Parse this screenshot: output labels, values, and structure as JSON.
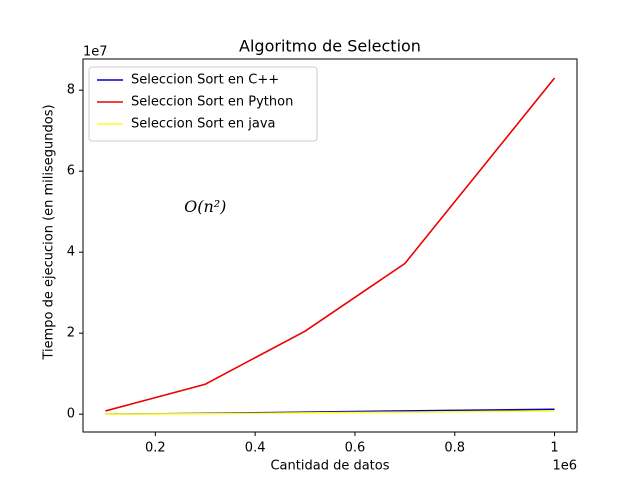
{
  "chart_data": {
    "type": "line",
    "title": "Algoritmo de  Selection",
    "xlabel": "Cantidad de datos",
    "ylabel": "Tiempo de ejecucion (en milisegundos)",
    "x_offset_text": "1e6",
    "y_offset_text": "1e7",
    "x": [
      0.1,
      0.3,
      0.5,
      0.7,
      1.0
    ],
    "series": [
      {
        "name": "Seleccion Sort en C++",
        "color": "#0000cc",
        "values": [
          0.0,
          0.02,
          0.05,
          0.08,
          0.12
        ]
      },
      {
        "name": "Seleccion Sort en  Python",
        "color": "#ee0000",
        "values": [
          0.08,
          0.74,
          2.05,
          3.72,
          8.3
        ]
      },
      {
        "name": "Seleccion Sort en  java",
        "color": "#ffff22",
        "values": [
          0.0,
          0.01,
          0.03,
          0.05,
          0.08
        ]
      }
    ],
    "annotation": {
      "text": "O(n²)",
      "x": 0.3,
      "y": 5.1
    },
    "xlim": [
      0.055,
      1.045
    ],
    "ylim": [
      -0.44,
      8.77
    ],
    "xticks": [
      0.2,
      0.4,
      0.6,
      0.8,
      1.0
    ],
    "yticks": [
      0,
      2,
      4,
      6,
      8
    ],
    "legend": "upper left",
    "grid": false
  }
}
